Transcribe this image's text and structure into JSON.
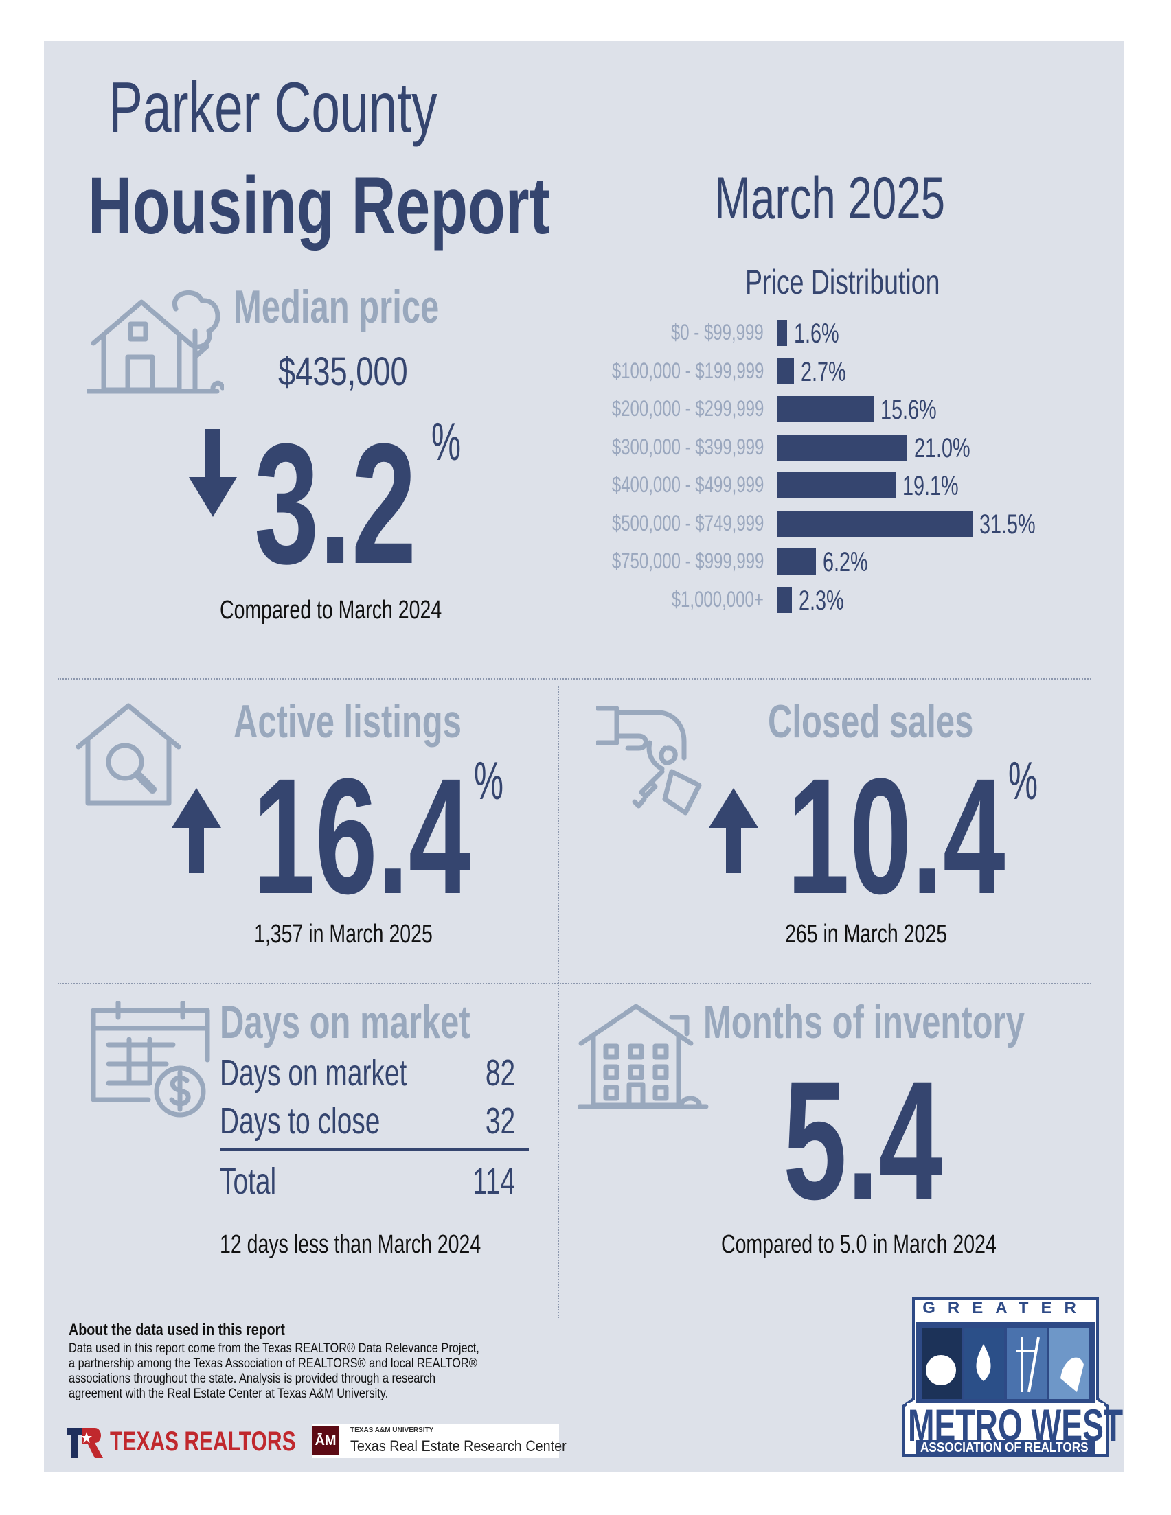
{
  "header": {
    "title_line1": "Parker County",
    "title_line2": "Housing Report",
    "month": "March 2025"
  },
  "median_price": {
    "title": "Median price",
    "value": "$435,000",
    "change": "3.2",
    "percent_sign": "%",
    "direction": "down",
    "caption": "Compared to March 2024"
  },
  "price_distribution": {
    "title": "Price Distribution",
    "rows": [
      {
        "label": "$0 - $99,999",
        "value": "1.6%",
        "pct": 1.6
      },
      {
        "label": "$100,000 - $199,999",
        "value": "2.7%",
        "pct": 2.7
      },
      {
        "label": "$200,000 - $299,999",
        "value": "15.6%",
        "pct": 15.6
      },
      {
        "label": "$300,000 - $399,999",
        "value": "21.0%",
        "pct": 21.0
      },
      {
        "label": "$400,000 - $499,999",
        "value": "19.1%",
        "pct": 19.1
      },
      {
        "label": "$500,000 - $749,999",
        "value": "31.5%",
        "pct": 31.5
      },
      {
        "label": "$750,000 - $999,999",
        "value": "6.2%",
        "pct": 6.2
      },
      {
        "label": "$1,000,000+",
        "value": "2.3%",
        "pct": 2.3
      }
    ]
  },
  "active_listings": {
    "title": "Active listings",
    "change": "16.4",
    "percent_sign": "%",
    "direction": "up",
    "caption": "1,357 in March 2025"
  },
  "closed_sales": {
    "title": "Closed sales",
    "change": "10.4",
    "percent_sign": "%",
    "direction": "up",
    "caption": "265 in March 2025"
  },
  "days_on_market": {
    "title": "Days on market",
    "rows": [
      {
        "label": "Days on market",
        "value": "82"
      },
      {
        "label": "Days to close",
        "value": "32"
      }
    ],
    "total_label": "Total",
    "total_value": "114",
    "caption": "12 days less than March 2024"
  },
  "months_inventory": {
    "title": "Months of inventory",
    "value": "5.4",
    "caption": "Compared to 5.0 in March 2024"
  },
  "about": {
    "heading": "About the data used in this report",
    "body": "Data used in this report come from the Texas REALTOR® Data Relevance Project, a partnership among the Texas Association of REALTORS® and local REALTOR® associations throughout the state. Analysis is provided through a research agreement with the Real Estate Center at Texas A&M University."
  },
  "logos": {
    "texas_realtors": "TEXAS REALTORS",
    "tamu_small": "TEXAS A&M UNIVERSITY",
    "tamu_name": "Texas Real Estate Research Center",
    "metro_west_top": "GREATER",
    "metro_west_name": "METRO WEST",
    "metro_west_sub": "ASSOCIATION OF REALTORS"
  },
  "colors": {
    "navy": "#35456f",
    "grey_blue": "#99a8bd",
    "panel": "#dde1e9"
  }
}
